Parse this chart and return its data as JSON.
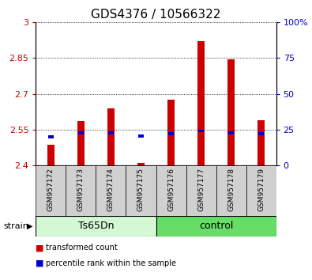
{
  "title": "GDS4376 / 10566322",
  "samples": [
    "GSM957172",
    "GSM957173",
    "GSM957174",
    "GSM957175",
    "GSM957176",
    "GSM957177",
    "GSM957178",
    "GSM957179"
  ],
  "red_values": [
    2.487,
    2.585,
    2.64,
    2.41,
    2.675,
    2.92,
    2.845,
    2.59
  ],
  "blue_pct": [
    20.0,
    22.5,
    22.5,
    20.5,
    22.0,
    24.0,
    22.5,
    22.0
  ],
  "ylim_left": [
    2.4,
    3.0
  ],
  "ylim_right": [
    0,
    100
  ],
  "yticks_left": [
    2.4,
    2.55,
    2.7,
    2.85,
    3.0
  ],
  "ytick_labels_left": [
    "2.4",
    "2.55",
    "2.7",
    "2.85",
    "3"
  ],
  "yticks_right": [
    0,
    25,
    50,
    75,
    100
  ],
  "ytick_labels_right": [
    "0",
    "25",
    "50",
    "75",
    "100%"
  ],
  "groups": [
    {
      "label": "Ts65Dn",
      "indices": [
        0,
        1,
        2,
        3
      ],
      "color": "#d4f7d4"
    },
    {
      "label": "control",
      "indices": [
        4,
        5,
        6,
        7
      ],
      "color": "#66dd66"
    }
  ],
  "strain_label": "strain",
  "legend": [
    {
      "label": "transformed count",
      "color": "#cc0000"
    },
    {
      "label": "percentile rank within the sample",
      "color": "#0000cc"
    }
  ],
  "bar_width": 0.25,
  "red_color": "#cc0000",
  "blue_color": "#0000cc",
  "bar_bottom": 2.4,
  "title_fontsize": 11,
  "tick_fontsize": 8,
  "label_color_left": "#cc0000",
  "label_color_right": "#0000cc",
  "sample_box_color": "#d0d0d0",
  "sample_text_fontsize": 6.5
}
